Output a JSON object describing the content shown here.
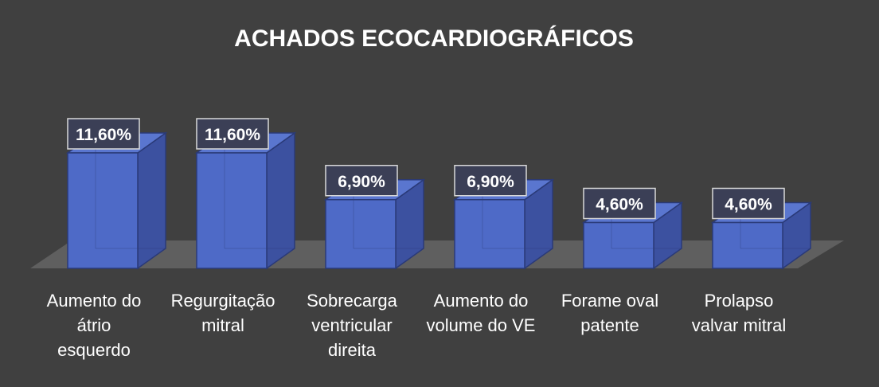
{
  "chart_data": {
    "type": "bar",
    "title": "ACHADOS ECOCARDIOGRÁFICOS",
    "categories": [
      [
        "Aumento do",
        "átrio",
        "esquerdo"
      ],
      [
        "Regurgitação",
        "mitral"
      ],
      [
        "Sobrecarga",
        "ventricular",
        "direita"
      ],
      [
        "Aumento do",
        "volume do VE"
      ],
      [
        "Forame oval",
        "patente"
      ],
      [
        "Prolapso",
        "valvar mitral"
      ]
    ],
    "values": [
      11.6,
      11.6,
      6.9,
      6.9,
      4.6,
      4.6
    ],
    "data_labels": [
      "11,60%",
      "11,60%",
      "6,90%",
      "6,90%",
      "4,60%",
      "4,60%"
    ],
    "ylim": [
      0,
      14
    ],
    "grid": false,
    "legend": "none",
    "colors": {
      "background": "#404040",
      "floor": "#5f5f5f",
      "bar_front": "#4e6ac7",
      "bar_side": "#3c51a0",
      "bar_top": "#5a76cf",
      "bar_edge": "#2a3a78",
      "label_box_fill": "#3b3f56",
      "label_box_border": "#d8d8d8",
      "text": "#ffffff"
    }
  }
}
